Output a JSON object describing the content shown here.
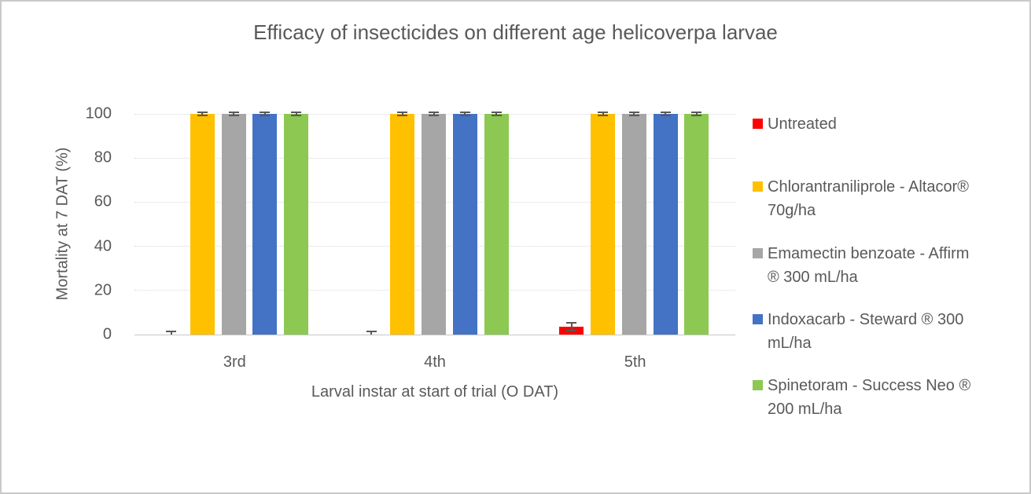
{
  "title": "Efficacy of insecticides on different age helicoverpa larvae",
  "chart_data": {
    "type": "bar",
    "title": "Efficacy of insecticides on different age helicoverpa larvae",
    "xlabel": "Larval instar at start of trial (O DAT)",
    "ylabel": "Mortality at 7 DAT (%)",
    "ylim": [
      0,
      100
    ],
    "yticks": [
      0,
      20,
      40,
      60,
      80,
      100
    ],
    "categories": [
      "3rd",
      "4th",
      "5th"
    ],
    "grid": "horizontal-dotted",
    "legend_position": "right",
    "error_bar_color": "#595959",
    "series": [
      {
        "name": "Untreated",
        "label_lines": [
          "Untreated"
        ],
        "color": "#FF0000",
        "values": [
          0,
          0,
          3.5
        ],
        "errors": [
          1.5,
          1.5,
          1.8
        ]
      },
      {
        "name": "Chlorantraniliprole - Altacor® 70g/ha",
        "label_lines": [
          "Chlorantraniliprole - Altacor®",
          "70g/ha"
        ],
        "color": "#FFC000",
        "values": [
          100,
          100,
          100
        ],
        "errors": [
          0.7,
          0.7,
          0.7
        ]
      },
      {
        "name": "Emamectin benzoate - Affirm ® 300 mL/ha",
        "label_lines": [
          "Emamectin benzoate - Affirm",
          "® 300 mL/ha"
        ],
        "color": "#A6A6A6",
        "values": [
          100,
          100,
          100
        ],
        "errors": [
          0.7,
          0.7,
          0.7
        ]
      },
      {
        "name": "Indoxacarb - Steward ® 300 mL/ha",
        "label_lines": [
          "Indoxacarb - Steward ® 300",
          "mL/ha"
        ],
        "color": "#4472C4",
        "values": [
          100,
          100,
          100
        ],
        "errors": [
          0.7,
          0.7,
          0.7
        ]
      },
      {
        "name": "Spinetoram - Success Neo ® 200 mL/ha",
        "label_lines": [
          "Spinetoram - Success Neo ®",
          "200 mL/ha"
        ],
        "color": "#8CC852",
        "values": [
          100,
          100,
          100
        ],
        "errors": [
          0.7,
          0.7,
          0.7
        ]
      }
    ]
  }
}
